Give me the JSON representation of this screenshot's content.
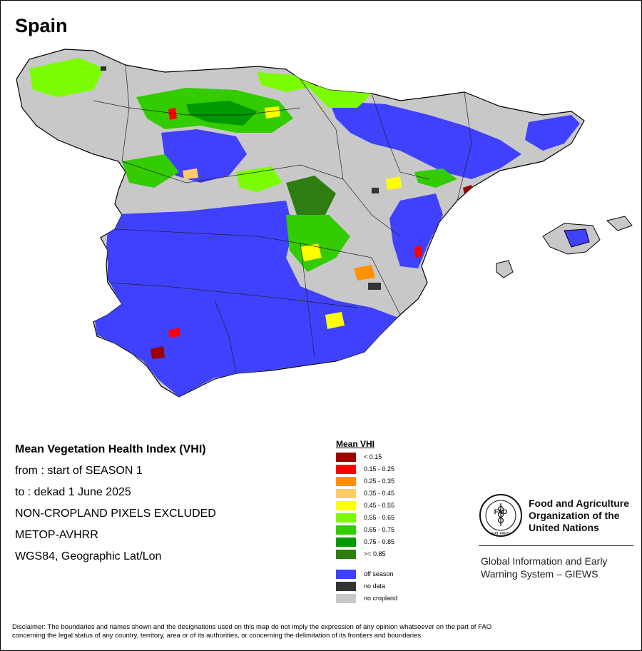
{
  "map": {
    "title": "Spain"
  },
  "info": {
    "heading": "Mean Vegetation Health Index (VHI)",
    "from_line": "from    : start of SEASON 1",
    "to_line": "to      : dekad 1 June 2025",
    "exclusion_note": "NON-CROPLAND PIXELS EXCLUDED",
    "sensor": "METOP-AVHRR",
    "projection": "WGS84, Geographic Lat/Lon"
  },
  "legend": {
    "title": "Mean VHI",
    "classes": [
      {
        "label": "< 0.15",
        "color": "#9b0000"
      },
      {
        "label": "0.15 - 0.25",
        "color": "#ff0000"
      },
      {
        "label": "0.25 - 0.35",
        "color": "#ff9000"
      },
      {
        "label": "0.35 - 0.45",
        "color": "#ffcc66"
      },
      {
        "label": "0.45 - 0.55",
        "color": "#ffff00"
      },
      {
        "label": "0.55 - 0.65",
        "color": "#7cfc00"
      },
      {
        "label": "0.65 - 0.75",
        "color": "#33cc00"
      },
      {
        "label": "0.75 - 0.85",
        "color": "#009900"
      },
      {
        "label": ">= 0.85",
        "color": "#2e7d10"
      }
    ],
    "other": [
      {
        "label": "off season",
        "color": "#4040ff"
      },
      {
        "label": "no data",
        "color": "#333333"
      },
      {
        "label": "no cropland",
        "color": "#c8c8c8"
      }
    ]
  },
  "fao": {
    "logo_text": "FAO",
    "logo_motto": "FIAT PANIS",
    "org_name_1": "Food and Agriculture",
    "org_name_2": "Organization of the",
    "org_name_3": "United Nations",
    "system_1": "Global Information and Early",
    "system_2": "Warning System – GIEWS"
  },
  "disclaimer": {
    "line_1": "Disclaimer: The boundaries and names shown and the designations used on this map do not imply the expression of any opinion whatsoever on the part of FAO",
    "line_2": "concerning the legal status of any country, territory, area or of its authorities, or concerning the delimitation of its frontiers and boundaries."
  }
}
